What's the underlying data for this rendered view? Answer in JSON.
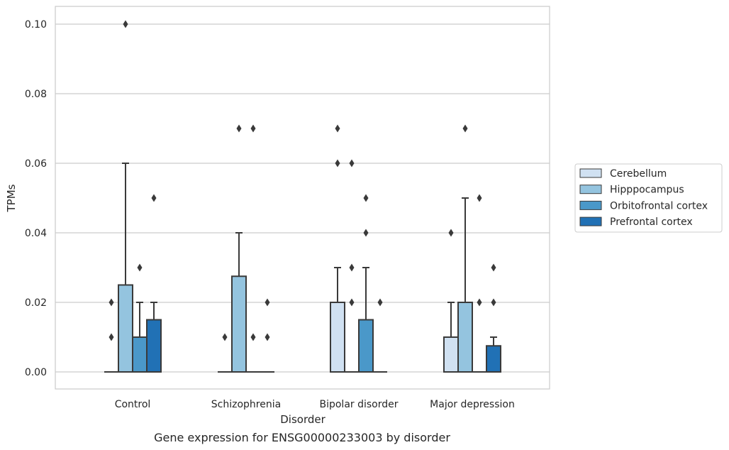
{
  "chart_data": {
    "type": "box",
    "xlabel": "Disorder",
    "ylabel": "TPMs",
    "caption": "Gene expression for ENSG00000233003 by disorder",
    "ylim": [
      -0.005,
      0.105
    ],
    "yticks": [
      "0.00",
      "0.02",
      "0.04",
      "0.06",
      "0.08",
      "0.10"
    ],
    "grid": "horizontal",
    "legend_position": "right",
    "categories": [
      "Control",
      "Schizophrenia",
      "Bipolar disorder",
      "Major depression"
    ],
    "series": [
      {
        "name": "Cerebellum",
        "color": "#d0e1f2",
        "boxes": [
          {
            "q1": 0,
            "median": 0,
            "q3": 0,
            "whisker_low": 0,
            "whisker_high": 0,
            "outliers": [
              0.01,
              0.02
            ]
          },
          {
            "q1": 0,
            "median": 0,
            "q3": 0,
            "whisker_low": 0,
            "whisker_high": 0,
            "outliers": [
              0.01
            ]
          },
          {
            "q1": 0,
            "median": 0,
            "q3": 0.02,
            "whisker_low": 0,
            "whisker_high": 0.03,
            "outliers": [
              0.06,
              0.07
            ]
          },
          {
            "q1": 0,
            "median": 0,
            "q3": 0.01,
            "whisker_low": 0,
            "whisker_high": 0.02,
            "outliers": [
              0.04
            ]
          }
        ]
      },
      {
        "name": "Hipppocampus",
        "color": "#94c4df",
        "boxes": [
          {
            "q1": 0,
            "median": 0,
            "q3": 0.025,
            "whisker_low": 0,
            "whisker_high": 0.06,
            "outliers": [
              0.1
            ]
          },
          {
            "q1": 0,
            "median": 0,
            "q3": 0.0275,
            "whisker_low": 0,
            "whisker_high": 0.04,
            "outliers": [
              0.07
            ]
          },
          {
            "q1": 0,
            "median": 0,
            "q3": 0,
            "whisker_low": 0,
            "whisker_high": 0,
            "outliers": [
              0.02,
              0.03,
              0.06
            ]
          },
          {
            "q1": 0,
            "median": 0,
            "q3": 0.02,
            "whisker_low": 0,
            "whisker_high": 0.05,
            "outliers": [
              0.07
            ]
          }
        ]
      },
      {
        "name": "Orbitofrontal cortex",
        "color": "#4a98c9",
        "boxes": [
          {
            "q1": 0,
            "median": 0,
            "q3": 0.01,
            "whisker_low": 0,
            "whisker_high": 0.02,
            "outliers": [
              0.03
            ]
          },
          {
            "q1": 0,
            "median": 0,
            "q3": 0,
            "whisker_low": 0,
            "whisker_high": 0,
            "outliers": [
              0.01,
              0.07
            ]
          },
          {
            "q1": 0,
            "median": 0,
            "q3": 0.015,
            "whisker_low": 0,
            "whisker_high": 0.03,
            "outliers": [
              0.04,
              0.05
            ]
          },
          {
            "q1": 0,
            "median": 0,
            "q3": 0,
            "whisker_low": 0,
            "whisker_high": 0,
            "outliers": [
              0.02,
              0.05
            ]
          }
        ]
      },
      {
        "name": "Prefrontal cortex",
        "color": "#2171b5",
        "boxes": [
          {
            "q1": 0,
            "median": 0,
            "q3": 0.015,
            "whisker_low": 0,
            "whisker_high": 0.02,
            "outliers": [
              0.05
            ]
          },
          {
            "q1": 0,
            "median": 0,
            "q3": 0,
            "whisker_low": 0,
            "whisker_high": 0,
            "outliers": [
              0.01,
              0.02
            ]
          },
          {
            "q1": 0,
            "median": 0,
            "q3": 0,
            "whisker_low": 0,
            "whisker_high": 0,
            "outliers": [
              0.02
            ]
          },
          {
            "q1": 0,
            "median": 0,
            "q3": 0.0075,
            "whisker_low": 0,
            "whisker_high": 0.01,
            "outliers": [
              0.02,
              0.03
            ]
          }
        ]
      }
    ]
  }
}
